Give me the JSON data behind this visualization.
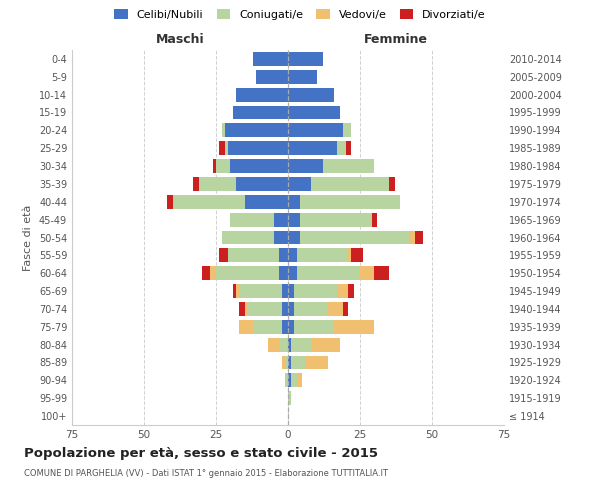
{
  "age_groups": [
    "100+",
    "95-99",
    "90-94",
    "85-89",
    "80-84",
    "75-79",
    "70-74",
    "65-69",
    "60-64",
    "55-59",
    "50-54",
    "45-49",
    "40-44",
    "35-39",
    "30-34",
    "25-29",
    "20-24",
    "15-19",
    "10-14",
    "5-9",
    "0-4"
  ],
  "birth_years": [
    "≤ 1914",
    "1915-1919",
    "1920-1924",
    "1925-1929",
    "1930-1934",
    "1935-1939",
    "1940-1944",
    "1945-1949",
    "1950-1954",
    "1955-1959",
    "1960-1964",
    "1965-1969",
    "1970-1974",
    "1975-1979",
    "1980-1984",
    "1985-1989",
    "1990-1994",
    "1995-1999",
    "2000-2004",
    "2005-2009",
    "2010-2014"
  ],
  "male_celibi": [
    0,
    0,
    0,
    0,
    0,
    2,
    2,
    2,
    3,
    3,
    5,
    5,
    15,
    18,
    20,
    21,
    22,
    19,
    18,
    11,
    12
  ],
  "male_coniugati": [
    0,
    0,
    1,
    1,
    3,
    10,
    12,
    15,
    22,
    18,
    18,
    15,
    25,
    13,
    5,
    1,
    1,
    0,
    0,
    0,
    0
  ],
  "male_vedovi": [
    0,
    0,
    0,
    1,
    4,
    5,
    1,
    1,
    2,
    0,
    0,
    0,
    0,
    0,
    0,
    0,
    0,
    0,
    0,
    0,
    0
  ],
  "male_divorziati": [
    0,
    0,
    0,
    0,
    0,
    0,
    2,
    1,
    3,
    3,
    0,
    0,
    2,
    2,
    1,
    2,
    0,
    0,
    0,
    0,
    0
  ],
  "female_celibi": [
    0,
    0,
    1,
    1,
    1,
    2,
    2,
    2,
    3,
    3,
    4,
    4,
    4,
    8,
    12,
    17,
    19,
    18,
    16,
    10,
    12
  ],
  "female_coniugati": [
    0,
    1,
    2,
    5,
    7,
    14,
    12,
    15,
    22,
    18,
    38,
    25,
    35,
    27,
    18,
    3,
    3,
    0,
    0,
    0,
    0
  ],
  "female_vedovi": [
    0,
    0,
    2,
    8,
    10,
    14,
    5,
    4,
    5,
    1,
    2,
    0,
    0,
    0,
    0,
    0,
    0,
    0,
    0,
    0,
    0
  ],
  "female_divorziati": [
    0,
    0,
    0,
    0,
    0,
    0,
    2,
    2,
    5,
    4,
    3,
    2,
    0,
    2,
    0,
    2,
    0,
    0,
    0,
    0,
    0
  ],
  "color_celibi": "#4472c4",
  "color_coniugati": "#b8d4a0",
  "color_vedovi": "#f0c070",
  "color_divorziati": "#cc2020",
  "title": "Popolazione per età, sesso e stato civile - 2015",
  "subtitle": "COMUNE DI PARGHELIA (VV) - Dati ISTAT 1° gennaio 2015 - Elaborazione TUTTITALIA.IT",
  "ylabel_left": "Fasce di età",
  "xlabel_left": "Maschi",
  "xlabel_right": "Femmine",
  "xlim": 75,
  "bg_color": "#ffffff",
  "grid_color": "#cccccc"
}
